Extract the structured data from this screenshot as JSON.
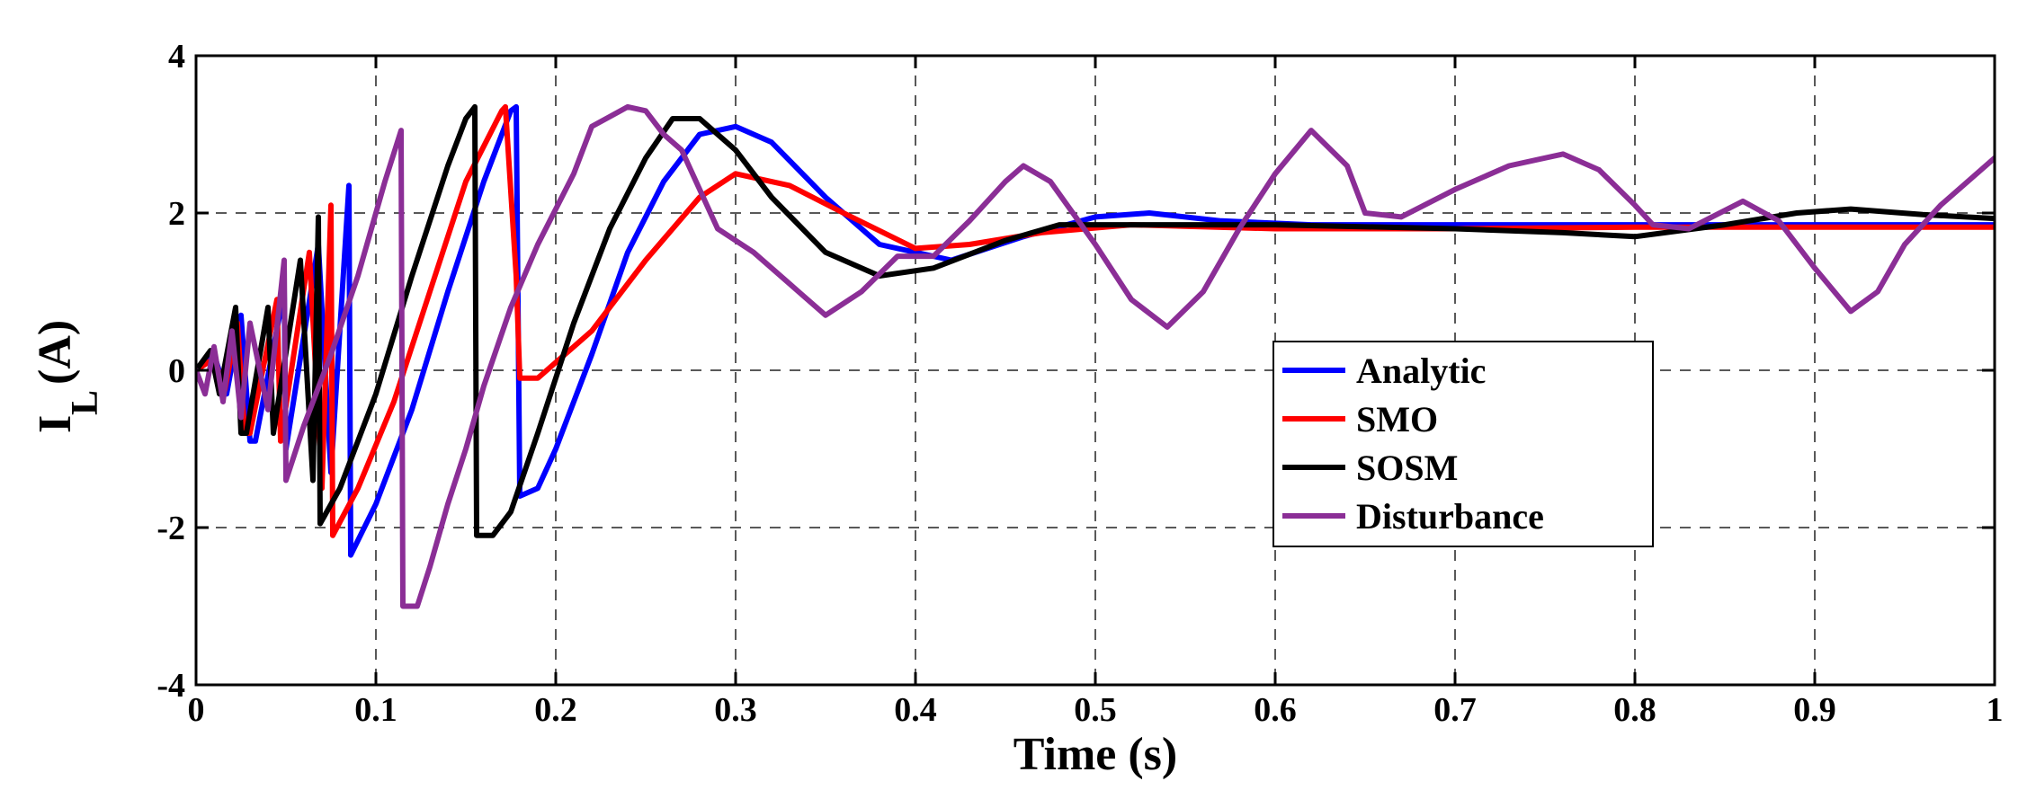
{
  "chart_data": {
    "type": "line",
    "title": "",
    "xlabel": "Time (s)",
    "ylabel": {
      "main": "I",
      "subscript": "L",
      "unit": "(A)"
    },
    "xlim": [
      0,
      1
    ],
    "ylim": [
      -4,
      4
    ],
    "xticks": [
      0,
      0.1,
      0.2,
      0.3,
      0.4,
      0.5,
      0.6,
      0.7,
      0.8,
      0.9,
      1
    ],
    "xtick_labels": [
      "0",
      "0.1",
      "0.2",
      "0.3",
      "0.4",
      "0.5",
      "0.6",
      "0.7",
      "0.8",
      "0.9",
      "1"
    ],
    "yticks": [
      -4,
      -2,
      0,
      2,
      4
    ],
    "ytick_labels": [
      "-4",
      "-2",
      "0",
      "2",
      "4"
    ],
    "grid": true,
    "legend_position": "center-right",
    "series": [
      {
        "name": "Analytic",
        "color": "#0000ff",
        "points": [
          [
            0,
            0
          ],
          [
            0.01,
            0.2
          ],
          [
            0.017,
            -0.3
          ],
          [
            0.025,
            0.7
          ],
          [
            0.03,
            -0.9
          ],
          [
            0.033,
            -0.9
          ],
          [
            0.049,
            1.0
          ],
          [
            0.05,
            -1.0
          ],
          [
            0.068,
            1.6
          ],
          [
            0.075,
            -1.3
          ],
          [
            0.085,
            2.35
          ],
          [
            0.086,
            -2.35
          ],
          [
            0.1,
            -1.7
          ],
          [
            0.12,
            -0.5
          ],
          [
            0.14,
            1.0
          ],
          [
            0.16,
            2.4
          ],
          [
            0.175,
            3.3
          ],
          [
            0.178,
            3.35
          ],
          [
            0.18,
            -1.6
          ],
          [
            0.19,
            -1.5
          ],
          [
            0.2,
            -1.0
          ],
          [
            0.22,
            0.2
          ],
          [
            0.24,
            1.5
          ],
          [
            0.26,
            2.4
          ],
          [
            0.28,
            3.0
          ],
          [
            0.3,
            3.1
          ],
          [
            0.32,
            2.9
          ],
          [
            0.35,
            2.2
          ],
          [
            0.38,
            1.6
          ],
          [
            0.42,
            1.4
          ],
          [
            0.46,
            1.7
          ],
          [
            0.5,
            1.95
          ],
          [
            0.53,
            2.0
          ],
          [
            0.57,
            1.9
          ],
          [
            0.62,
            1.85
          ],
          [
            0.7,
            1.85
          ],
          [
            0.8,
            1.85
          ],
          [
            0.9,
            1.85
          ],
          [
            1,
            1.85
          ]
        ]
      },
      {
        "name": "SMO",
        "color": "#ff0000",
        "points": [
          [
            0,
            0
          ],
          [
            0.01,
            0.15
          ],
          [
            0.016,
            -0.25
          ],
          [
            0.023,
            0.6
          ],
          [
            0.027,
            -0.8
          ],
          [
            0.03,
            -0.8
          ],
          [
            0.045,
            0.9
          ],
          [
            0.047,
            -0.9
          ],
          [
            0.063,
            1.5
          ],
          [
            0.07,
            -1.5
          ],
          [
            0.075,
            2.1
          ],
          [
            0.076,
            -2.1
          ],
          [
            0.09,
            -1.5
          ],
          [
            0.11,
            -0.4
          ],
          [
            0.13,
            1.0
          ],
          [
            0.15,
            2.4
          ],
          [
            0.17,
            3.3
          ],
          [
            0.172,
            3.35
          ],
          [
            0.178,
            1.2
          ],
          [
            0.18,
            -0.1
          ],
          [
            0.19,
            -0.1
          ],
          [
            0.2,
            0.1
          ],
          [
            0.22,
            0.5
          ],
          [
            0.25,
            1.4
          ],
          [
            0.28,
            2.2
          ],
          [
            0.3,
            2.5
          ],
          [
            0.33,
            2.35
          ],
          [
            0.36,
            2.0
          ],
          [
            0.4,
            1.55
          ],
          [
            0.43,
            1.6
          ],
          [
            0.47,
            1.75
          ],
          [
            0.52,
            1.85
          ],
          [
            0.6,
            1.8
          ],
          [
            0.7,
            1.8
          ],
          [
            0.8,
            1.82
          ],
          [
            0.9,
            1.82
          ],
          [
            1,
            1.82
          ]
        ]
      },
      {
        "name": "SOSM",
        "color": "#000000",
        "points": [
          [
            0,
            0
          ],
          [
            0.008,
            0.25
          ],
          [
            0.013,
            -0.3
          ],
          [
            0.022,
            0.8
          ],
          [
            0.025,
            -0.8
          ],
          [
            0.028,
            -0.8
          ],
          [
            0.04,
            0.8
          ],
          [
            0.043,
            -0.8
          ],
          [
            0.058,
            1.4
          ],
          [
            0.065,
            -1.4
          ],
          [
            0.068,
            1.95
          ],
          [
            0.069,
            -1.95
          ],
          [
            0.08,
            -1.5
          ],
          [
            0.1,
            -0.3
          ],
          [
            0.12,
            1.2
          ],
          [
            0.14,
            2.6
          ],
          [
            0.15,
            3.2
          ],
          [
            0.155,
            3.35
          ],
          [
            0.156,
            -2.1
          ],
          [
            0.165,
            -2.1
          ],
          [
            0.175,
            -1.8
          ],
          [
            0.19,
            -0.8
          ],
          [
            0.21,
            0.6
          ],
          [
            0.23,
            1.8
          ],
          [
            0.25,
            2.7
          ],
          [
            0.265,
            3.2
          ],
          [
            0.28,
            3.2
          ],
          [
            0.3,
            2.8
          ],
          [
            0.32,
            2.2
          ],
          [
            0.35,
            1.5
          ],
          [
            0.38,
            1.2
          ],
          [
            0.41,
            1.3
          ],
          [
            0.45,
            1.65
          ],
          [
            0.48,
            1.85
          ],
          [
            0.52,
            1.85
          ],
          [
            0.6,
            1.85
          ],
          [
            0.7,
            1.8
          ],
          [
            0.76,
            1.75
          ],
          [
            0.8,
            1.7
          ],
          [
            0.85,
            1.85
          ],
          [
            0.89,
            2.0
          ],
          [
            0.92,
            2.05
          ],
          [
            0.96,
            1.98
          ],
          [
            1,
            1.93
          ]
        ]
      },
      {
        "name": "Disturbance",
        "color": "#8b2e96",
        "points": [
          [
            0,
            0
          ],
          [
            0.005,
            -0.3
          ],
          [
            0.01,
            0.3
          ],
          [
            0.015,
            -0.4
          ],
          [
            0.02,
            0.5
          ],
          [
            0.025,
            -0.6
          ],
          [
            0.03,
            0.6
          ],
          [
            0.04,
            -0.5
          ],
          [
            0.049,
            1.4
          ],
          [
            0.05,
            -1.4
          ],
          [
            0.06,
            -0.7
          ],
          [
            0.075,
            0.2
          ],
          [
            0.09,
            1.2
          ],
          [
            0.105,
            2.4
          ],
          [
            0.114,
            3.05
          ],
          [
            0.115,
            -3.0
          ],
          [
            0.123,
            -3.0
          ],
          [
            0.13,
            -2.5
          ],
          [
            0.14,
            -1.7
          ],
          [
            0.15,
            -1.0
          ],
          [
            0.16,
            -0.2
          ],
          [
            0.175,
            0.8
          ],
          [
            0.19,
            1.6
          ],
          [
            0.21,
            2.5
          ],
          [
            0.22,
            3.1
          ],
          [
            0.24,
            3.35
          ],
          [
            0.25,
            3.3
          ],
          [
            0.26,
            3.0
          ],
          [
            0.27,
            2.8
          ],
          [
            0.28,
            2.3
          ],
          [
            0.29,
            1.8
          ],
          [
            0.31,
            1.5
          ],
          [
            0.33,
            1.1
          ],
          [
            0.35,
            0.7
          ],
          [
            0.37,
            1.0
          ],
          [
            0.39,
            1.45
          ],
          [
            0.41,
            1.45
          ],
          [
            0.43,
            1.9
          ],
          [
            0.45,
            2.4
          ],
          [
            0.46,
            2.6
          ],
          [
            0.475,
            2.4
          ],
          [
            0.5,
            1.6
          ],
          [
            0.52,
            0.9
          ],
          [
            0.54,
            0.55
          ],
          [
            0.56,
            1.0
          ],
          [
            0.58,
            1.8
          ],
          [
            0.6,
            2.5
          ],
          [
            0.62,
            3.05
          ],
          [
            0.64,
            2.6
          ],
          [
            0.65,
            2.0
          ],
          [
            0.67,
            1.95
          ],
          [
            0.7,
            2.3
          ],
          [
            0.73,
            2.6
          ],
          [
            0.76,
            2.75
          ],
          [
            0.78,
            2.55
          ],
          [
            0.8,
            2.1
          ],
          [
            0.81,
            1.85
          ],
          [
            0.83,
            1.8
          ],
          [
            0.86,
            2.15
          ],
          [
            0.88,
            1.9
          ],
          [
            0.9,
            1.3
          ],
          [
            0.92,
            0.75
          ],
          [
            0.935,
            1.0
          ],
          [
            0.95,
            1.6
          ],
          [
            0.97,
            2.1
          ],
          [
            1,
            2.7
          ]
        ]
      }
    ]
  }
}
